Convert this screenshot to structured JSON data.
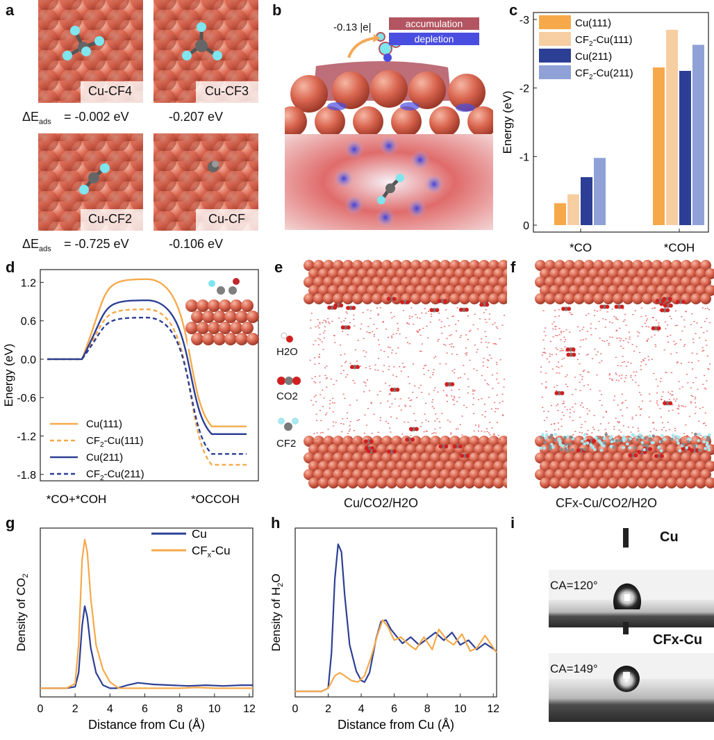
{
  "panel_letters": [
    "a",
    "b",
    "c",
    "d",
    "e",
    "f",
    "g",
    "h",
    "i"
  ],
  "panel_a": {
    "tiles": [
      "Cu-CF4",
      "Cu-CF3",
      "Cu-CF2",
      "Cu-CF"
    ],
    "dE_label": "ΔE",
    "dE_sub": "ads",
    "values": [
      "= -0.002 eV",
      "-0.207 eV",
      "= -0.725 eV",
      "-0.106 eV"
    ]
  },
  "panel_b": {
    "charge": "-0.13 |e|",
    "legend": [
      "accumulation",
      "depletion"
    ],
    "colors": {
      "accumulation": "#b25560",
      "depletion": "#4a4ee0"
    }
  },
  "panel_e": {
    "legend": [
      "H2O",
      "CO2",
      "CF2"
    ],
    "caption": "Cu/CO2/H2O"
  },
  "panel_f": {
    "caption": "CFx-Cu/CO2/H2O"
  },
  "panel_i": {
    "label_cu": "Cu",
    "label_cfx": "CFx-Cu",
    "ca_cu": "CA=120°",
    "ca_cfx": "CA=149°"
  },
  "colors": {
    "cu111": "#f5a94a",
    "cf2cu111": "#f7ceA2",
    "cu211": "#2c3f94",
    "cf2cu211": "#8fa1d6",
    "cu_sphere": "#d96a55"
  },
  "chart_data": [
    {
      "id": "c",
      "type": "bar",
      "categories": [
        "*CO",
        "*COH"
      ],
      "series": [
        {
          "name": "Cu(111)",
          "values": [
            -0.32,
            -2.3
          ]
        },
        {
          "name": "CF2-Cu(111)",
          "values": [
            -0.45,
            -2.85
          ]
        },
        {
          "name": "Cu(211)",
          "values": [
            -0.7,
            -2.25
          ]
        },
        {
          "name": "CF2-Cu(211)",
          "values": [
            -0.98,
            -2.63
          ]
        }
      ],
      "ylabel": "Energy (eV)",
      "ylim": [
        0,
        -3
      ],
      "yticks": [
        "0",
        "-1",
        "-2",
        "-3"
      ]
    },
    {
      "id": "d",
      "type": "line",
      "x_labels": [
        "*CO+*COH",
        "*OCCOH"
      ],
      "ylabel": "Energy (eV)",
      "ylim": [
        -1.9,
        1.4
      ],
      "yticks": [
        "1.2",
        "0.6",
        "0.0",
        "-0.6",
        "-1.2",
        "-1.8"
      ],
      "series": [
        {
          "name": "Cu(111)",
          "initial": 0.0,
          "barrier": 1.25,
          "final": -1.05,
          "style": "solid"
        },
        {
          "name": "CF2-Cu(111)",
          "initial": 0.0,
          "barrier": 0.78,
          "final": -1.65,
          "style": "dashed"
        },
        {
          "name": "Cu(211)",
          "initial": 0.0,
          "barrier": 0.92,
          "final": -1.17,
          "style": "solid"
        },
        {
          "name": "CF2-Cu(211)",
          "initial": 0.0,
          "barrier": 0.65,
          "final": -1.48,
          "style": "dashed"
        }
      ]
    },
    {
      "id": "g",
      "type": "line",
      "xlabel": "Distance from Cu (Å)",
      "ylabel": "Density of CO2",
      "xlim": [
        0,
        12.2
      ],
      "xticks": [
        "0",
        "2",
        "4",
        "6",
        "8",
        "10",
        "12"
      ],
      "series": [
        {
          "name": "Cu",
          "x": [
            0,
            1.5,
            2.0,
            2.2,
            2.4,
            2.55,
            2.7,
            2.9,
            3.2,
            3.6,
            4.0,
            4.4,
            5.0,
            5.6,
            6.5,
            7.5,
            8.5,
            9.5,
            10.5,
            11.5,
            12.2
          ],
          "y": [
            0.02,
            0.02,
            0.03,
            0.12,
            0.42,
            0.55,
            0.48,
            0.28,
            0.12,
            0.04,
            0.02,
            0.02,
            0.04,
            0.055,
            0.045,
            0.04,
            0.035,
            0.04,
            0.035,
            0.04,
            0.04
          ]
        },
        {
          "name": "CFx-Cu",
          "x": [
            0,
            1.5,
            2.0,
            2.2,
            2.4,
            2.55,
            2.7,
            2.9,
            3.2,
            3.6,
            4.0,
            4.5,
            5.0,
            6.0,
            7.0,
            8.0,
            9.0,
            10.0,
            11.0,
            12.2
          ],
          "y": [
            0.02,
            0.02,
            0.05,
            0.3,
            0.85,
            0.98,
            0.9,
            0.6,
            0.3,
            0.14,
            0.06,
            0.02,
            0.02,
            0.02,
            0.02,
            0.02,
            0.025,
            0.02,
            0.02,
            0.02
          ]
        }
      ]
    },
    {
      "id": "h",
      "type": "line",
      "xlabel": "Distance from Cu (Å)",
      "ylabel": "Density of H2O",
      "xlim": [
        0,
        12.2
      ],
      "xticks": [
        "0",
        "2",
        "4",
        "6",
        "8",
        "10",
        "12"
      ],
      "series": [
        {
          "name": "Cu",
          "x": [
            0,
            1.6,
            2.0,
            2.2,
            2.4,
            2.6,
            2.8,
            3.0,
            3.3,
            3.7,
            4.0,
            4.2,
            4.5,
            4.9,
            5.2,
            5.5,
            5.8,
            6.1,
            6.5,
            7.0,
            7.5,
            8.0,
            8.5,
            9.0,
            9.5,
            10.0,
            10.5,
            11.0,
            11.5,
            12.2
          ],
          "y": [
            0.0,
            0.0,
            0.02,
            0.25,
            0.72,
            0.95,
            0.9,
            0.62,
            0.3,
            0.13,
            0.07,
            0.06,
            0.12,
            0.34,
            0.45,
            0.46,
            0.4,
            0.36,
            0.31,
            0.35,
            0.3,
            0.34,
            0.38,
            0.33,
            0.38,
            0.3,
            0.33,
            0.27,
            0.31,
            0.26
          ]
        },
        {
          "name": "CFx-Cu",
          "x": [
            0,
            1.6,
            2.0,
            2.2,
            2.4,
            2.7,
            3.0,
            3.4,
            3.8,
            4.2,
            4.6,
            5.0,
            5.3,
            5.6,
            6.0,
            6.4,
            6.9,
            7.3,
            7.8,
            8.3,
            8.7,
            9.2,
            9.6,
            10.1,
            10.6,
            11.0,
            11.5,
            12.2
          ],
          "y": [
            0.0,
            0.0,
            0.02,
            0.06,
            0.1,
            0.12,
            0.1,
            0.07,
            0.06,
            0.1,
            0.22,
            0.37,
            0.46,
            0.42,
            0.33,
            0.35,
            0.3,
            0.27,
            0.35,
            0.27,
            0.4,
            0.33,
            0.3,
            0.37,
            0.26,
            0.28,
            0.36,
            0.25
          ]
        }
      ]
    }
  ]
}
